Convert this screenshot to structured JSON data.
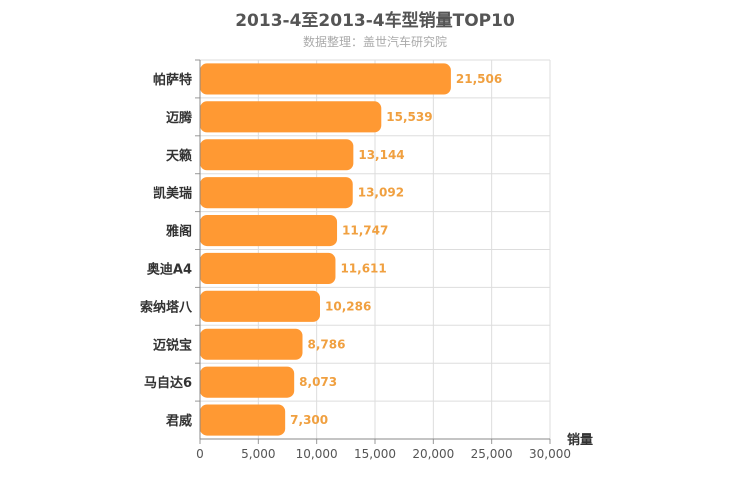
{
  "chart_data": {
    "type": "bar",
    "orientation": "horizontal",
    "title": "2013-4至2013-4车型销量TOP10",
    "subtitle": "数据整理：盖世汽车研究院",
    "xlabel": "销量",
    "ylabel": "",
    "categories": [
      "帕萨特",
      "迈腾",
      "天籁",
      "凯美瑞",
      "雅阁",
      "奥迪A4",
      "索纳塔八",
      "迈锐宝",
      "马自达6",
      "君威"
    ],
    "values": [
      21506,
      15539,
      13144,
      13092,
      11747,
      11611,
      10286,
      8786,
      8073,
      7300
    ],
    "value_labels": [
      "21,506",
      "15,539",
      "13,144",
      "13,092",
      "11,747",
      "11,611",
      "10,286",
      "8,786",
      "8,073",
      "7,300"
    ],
    "xlim": [
      0,
      30000
    ],
    "xticks": [
      0,
      5000,
      10000,
      15000,
      20000,
      25000,
      30000
    ],
    "xtick_labels": [
      "0",
      "5,000",
      "10,000",
      "15,000",
      "20,000",
      "25,000",
      "30,000"
    ],
    "grid": true,
    "bar_color": "#ff9933",
    "label_color": "#f0a040"
  }
}
